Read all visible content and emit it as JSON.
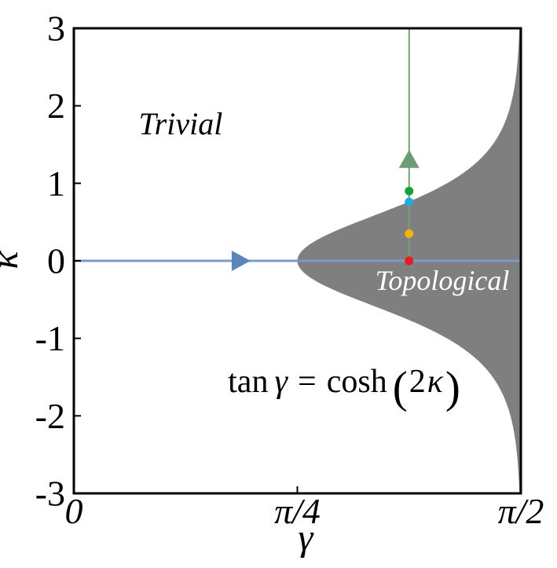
{
  "figure": {
    "region_labels": {
      "trivial": "Trivial",
      "topological": "Topological"
    },
    "equation": {
      "full": "tan γ = cosh(2κ)",
      "lhs_fn": "tan",
      "lhs_var": "γ",
      "equals": "=",
      "rhs_fn": "cosh",
      "paren_open": "(",
      "rhs_arg": "2",
      "rhs_var": "κ",
      "paren_close": ")"
    }
  },
  "chart_data": {
    "type": "area",
    "title": "",
    "xlabel": "γ",
    "ylabel": "κ",
    "xlim": [
      0,
      1.5707963267948966
    ],
    "ylim": [
      -3,
      3
    ],
    "grid": false,
    "legend": "none",
    "xticks": [
      {
        "value": 0,
        "label": "0"
      },
      {
        "value": 0.7853981633974483,
        "label": "π/4"
      },
      {
        "value": 1.5707963267948966,
        "label": "π/2"
      }
    ],
    "yticks": [
      {
        "value": 3,
        "label": "3"
      },
      {
        "value": 2,
        "label": "2"
      },
      {
        "value": 1,
        "label": "1"
      },
      {
        "value": 0,
        "label": "0"
      },
      {
        "value": -1,
        "label": "-1"
      },
      {
        "value": -2,
        "label": "-2"
      },
      {
        "value": -3,
        "label": "-3"
      }
    ],
    "boundary": {
      "equation": "tan γ = cosh(2κ)",
      "curve": "gamma = atan(cosh(2*kappa))",
      "shaded_region": "tan γ > cosh(2κ) → Topological; else Trivial",
      "fill": "#7f7f7f"
    },
    "horizontal_line": {
      "kappa": 0,
      "gamma_start": 0,
      "gamma_end": 1.5707963267948966,
      "arrow_gamma": 0.585,
      "color": "#7e99c8",
      "arrow_color": "#5b84b9"
    },
    "vertical_line": {
      "gamma": 1.1780972450961724,
      "kappa_start": 0,
      "kappa_end": 3,
      "arrow_kappa": 1.31,
      "color": "#74a17b",
      "arrow_color": "#6d9b74"
    },
    "markers": [
      {
        "name": "red",
        "gamma": 1.1780972450961724,
        "kappa": 0,
        "color": "#e81b23"
      },
      {
        "name": "orange",
        "gamma": 1.1780972450961724,
        "kappa": 0.35,
        "color": "#f6b200"
      },
      {
        "name": "blue",
        "gamma": 1.1780972450961724,
        "kappa": 0.76,
        "color": "#29a8e0"
      },
      {
        "name": "green",
        "gamma": 1.1780972450961724,
        "kappa": 0.9,
        "color": "#17a339"
      }
    ]
  }
}
